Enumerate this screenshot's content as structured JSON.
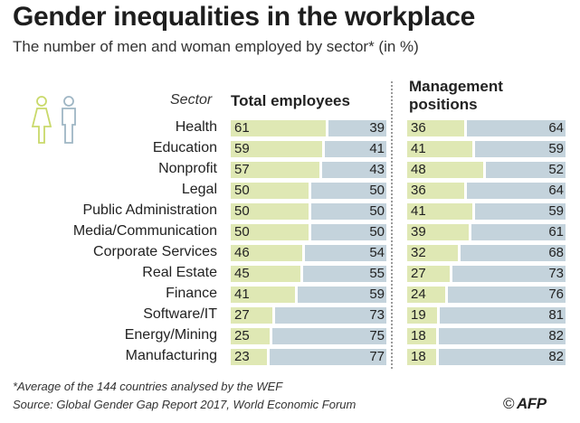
{
  "title": "Gender inequalities in the workplace",
  "subtitle": "The number of men and woman employed by sector* (in %)",
  "footnote": "*Average of the 144 countries analysed by the WEF",
  "source": "Source: Global Gender Gap Report 2017, World Economic Forum",
  "logo": {
    "symbol": "©",
    "text": "AFP"
  },
  "colors": {
    "female": "#dfe8b4",
    "male": "#c4d3dc",
    "female_icon": "#c9d96a",
    "male_icon": "#9fb6c4"
  },
  "icons": [
    "female-icon",
    "male-icon"
  ],
  "chart_data": [
    {
      "type": "bar",
      "stacked": true,
      "orientation": "horizontal",
      "title": "Total employees",
      "category_header": "Sector",
      "categories": [
        "Health",
        "Education",
        "Nonprofit",
        "Legal",
        "Public Administration",
        "Media/Communication",
        "Corporate Services",
        "Real Estate",
        "Finance",
        "Software/IT",
        "Energy/Mining",
        "Manufacturing"
      ],
      "series": [
        {
          "name": "",
          "gender": "female",
          "values": [
            61,
            59,
            57,
            50,
            50,
            50,
            46,
            45,
            41,
            27,
            25,
            23
          ]
        },
        {
          "name": "",
          "gender": "male",
          "values": [
            39,
            41,
            43,
            50,
            50,
            50,
            54,
            55,
            59,
            73,
            75,
            77
          ]
        }
      ],
      "xlim": [
        0,
        100
      ]
    },
    {
      "type": "bar",
      "stacked": true,
      "orientation": "horizontal",
      "title": "Management positions",
      "categories": [
        "Health",
        "Education",
        "Nonprofit",
        "Legal",
        "Public Administration",
        "Media/Communication",
        "Corporate Services",
        "Real Estate",
        "Finance",
        "Software/IT",
        "Energy/Mining",
        "Manufacturing"
      ],
      "series": [
        {
          "name": "",
          "gender": "female",
          "values": [
            36,
            41,
            48,
            36,
            41,
            39,
            32,
            27,
            24,
            19,
            18,
            18
          ]
        },
        {
          "name": "",
          "gender": "male",
          "values": [
            64,
            59,
            52,
            64,
            59,
            61,
            68,
            73,
            76,
            81,
            82,
            82
          ]
        }
      ],
      "xlim": [
        0,
        100
      ]
    }
  ]
}
